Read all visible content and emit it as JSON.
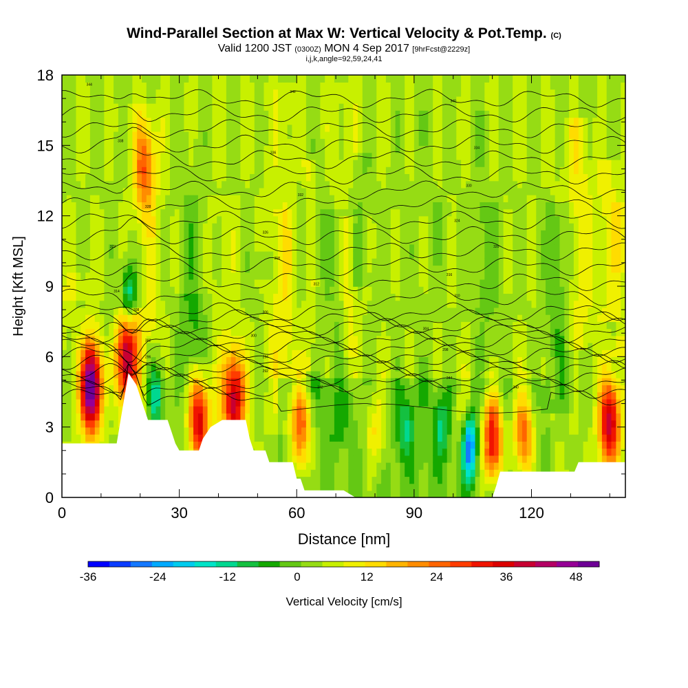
{
  "chart_data": {
    "type": "heatmap",
    "title": "Wind-Parallel Section at Max W: Vertical Velocity & Pot.Temp.",
    "title_mark": "(C)",
    "subtitle": {
      "valid_prefix": "Valid 1200 JST",
      "utc": "(0300Z)",
      "date": "MON 4 Sep 2017",
      "forecast": "[9hrFcst@2229z]"
    },
    "params_line": "i,j,k,angle=92,59,24,41",
    "xlabel": "Distance [nm]",
    "ylabel": "Height [Kft MSL]",
    "xlim": [
      0,
      144
    ],
    "ylim": [
      0,
      18
    ],
    "x_ticks": [
      "0",
      "30",
      "60",
      "90",
      "120"
    ],
    "y_ticks": [
      "0",
      "3",
      "6",
      "9",
      "12",
      "15",
      "18"
    ],
    "colorbar": {
      "label": "Vertical Velocity [cm/s]",
      "tick_labels": [
        "-36",
        "-24",
        "-12",
        "0",
        "12",
        "24",
        "36",
        "48"
      ],
      "range": [
        -36,
        52
      ],
      "colors": [
        "#0000ff",
        "#0a3cff",
        "#1478ff",
        "#00aaff",
        "#00ccee",
        "#00e4c8",
        "#00d890",
        "#14c040",
        "#14a800",
        "#64c814",
        "#96dc14",
        "#c8f000",
        "#f0f000",
        "#ffdc00",
        "#ffb400",
        "#ff8c00",
        "#ff6400",
        "#ff3c00",
        "#f01400",
        "#dc0000",
        "#c80032",
        "#b40064",
        "#960096",
        "#6e0096"
      ]
    },
    "terrain_profile": [
      [
        0,
        2.3
      ],
      [
        14,
        2.3
      ],
      [
        15,
        3.3
      ],
      [
        16,
        4.3
      ],
      [
        17,
        5.3
      ],
      [
        19,
        4.8
      ],
      [
        20,
        4.3
      ],
      [
        21,
        3.8
      ],
      [
        22,
        3.3
      ],
      [
        27,
        3.3
      ],
      [
        28,
        2.8
      ],
      [
        29,
        2.3
      ],
      [
        30,
        2.0
      ],
      [
        35,
        2.0
      ],
      [
        36,
        2.5
      ],
      [
        38,
        3.0
      ],
      [
        41,
        3.3
      ],
      [
        42,
        3.3
      ],
      [
        47,
        3.3
      ],
      [
        48,
        2.5
      ],
      [
        49,
        2.0
      ],
      [
        52,
        2.0
      ],
      [
        53,
        1.5
      ],
      [
        59,
        1.5
      ],
      [
        60,
        0.8
      ],
      [
        61,
        0.8
      ],
      [
        62,
        0.3
      ],
      [
        72,
        0.3
      ],
      [
        75,
        0
      ],
      [
        110,
        0
      ],
      [
        111,
        0.5
      ],
      [
        112,
        1.1
      ],
      [
        125,
        1.1
      ],
      [
        131,
        1.1
      ],
      [
        132,
        1.5
      ],
      [
        144,
        1.5
      ]
    ],
    "updrafts": [
      {
        "x": 7.5,
        "y": 4.7,
        "peak_cm_s": 52
      },
      {
        "x": 16.5,
        "y": 6.0,
        "peak_cm_s": 36
      },
      {
        "x": 21,
        "y": 14,
        "peak_cm_s": 20
      },
      {
        "x": 35,
        "y": 3.2,
        "peak_cm_s": 36
      },
      {
        "x": 44,
        "y": 4.2,
        "peak_cm_s": 36
      },
      {
        "x": 61,
        "y": 3.0,
        "peak_cm_s": 24
      },
      {
        "x": 80,
        "y": 3.0,
        "peak_cm_s": 12
      },
      {
        "x": 103,
        "y": 3.0,
        "peak_cm_s": 12
      },
      {
        "x": 110,
        "y": 2.6,
        "peak_cm_s": 36
      },
      {
        "x": 118,
        "y": 2.7,
        "peak_cm_s": 24
      },
      {
        "x": 140,
        "y": 3.2,
        "peak_cm_s": 36
      }
    ],
    "downdrafts": [
      {
        "x": 24,
        "y": 4.3,
        "peak_cm_s": -20
      },
      {
        "x": 17,
        "y": 8.5,
        "peak_cm_s": -20
      },
      {
        "x": 104,
        "y": 2.2,
        "peak_cm_s": -36
      },
      {
        "x": 97,
        "y": 3.0,
        "peak_cm_s": -12
      },
      {
        "x": 88,
        "y": 3.0,
        "peak_cm_s": -12
      }
    ],
    "theta_contours": {
      "labels_K": [
        "344",
        "342",
        "340",
        "338",
        "336",
        "334",
        "332",
        "330",
        "328",
        "326",
        "324",
        "322",
        "320",
        "318",
        "316",
        "314",
        "312",
        "310",
        "308",
        "306",
        "304",
        "302",
        "300",
        "298",
        "296",
        "294",
        "292"
      ],
      "label_positions": [
        [
          7,
          17.6
        ],
        [
          59,
          17.3
        ],
        [
          100,
          16.9
        ],
        [
          15,
          15.2
        ],
        [
          54,
          14.7
        ],
        [
          106,
          14.9
        ],
        [
          61,
          12.9
        ],
        [
          104,
          13.3
        ],
        [
          22,
          12.4
        ],
        [
          52,
          11.3
        ],
        [
          101,
          11.8
        ],
        [
          13,
          10.7
        ],
        [
          111,
          10.7
        ],
        [
          55,
          10.2
        ],
        [
          99,
          9.5
        ],
        [
          14,
          8.8
        ],
        [
          65,
          9.1
        ],
        [
          101,
          8.6
        ],
        [
          19,
          8.0
        ],
        [
          52,
          7.9
        ],
        [
          93,
          7.2
        ],
        [
          22,
          6.7
        ],
        [
          49,
          6.9
        ],
        [
          98,
          6.3
        ],
        [
          22,
          6.0
        ],
        [
          52,
          6.0
        ],
        [
          52,
          5.4
        ],
        [
          99,
          5.1
        ],
        [
          66,
          4.7
        ],
        [
          116,
          4.7
        ]
      ]
    },
    "legend": "none",
    "grid": "off"
  }
}
